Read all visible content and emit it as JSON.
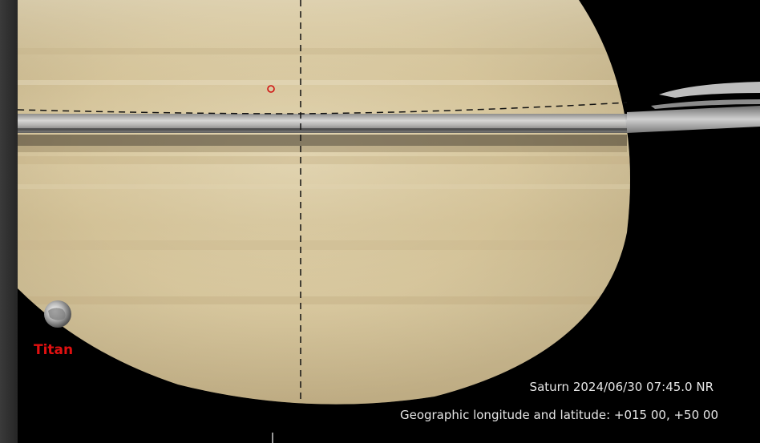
{
  "view": {
    "object_info": "Saturn 2024/06/30 07:45.0 NR",
    "coordinates_label": "Geographic longitude and latitude: +015 00, +50 00"
  },
  "moons": [
    {
      "label": "Titan"
    }
  ],
  "colors": {
    "background": "#000000",
    "planet": "#d9c9a0",
    "moon_label": "#e01010",
    "crosshair": "#000000",
    "target_marker": "#d01010"
  },
  "icons": {
    "target": "red-circle-marker",
    "crosshair": "dashed-crosshair"
  }
}
